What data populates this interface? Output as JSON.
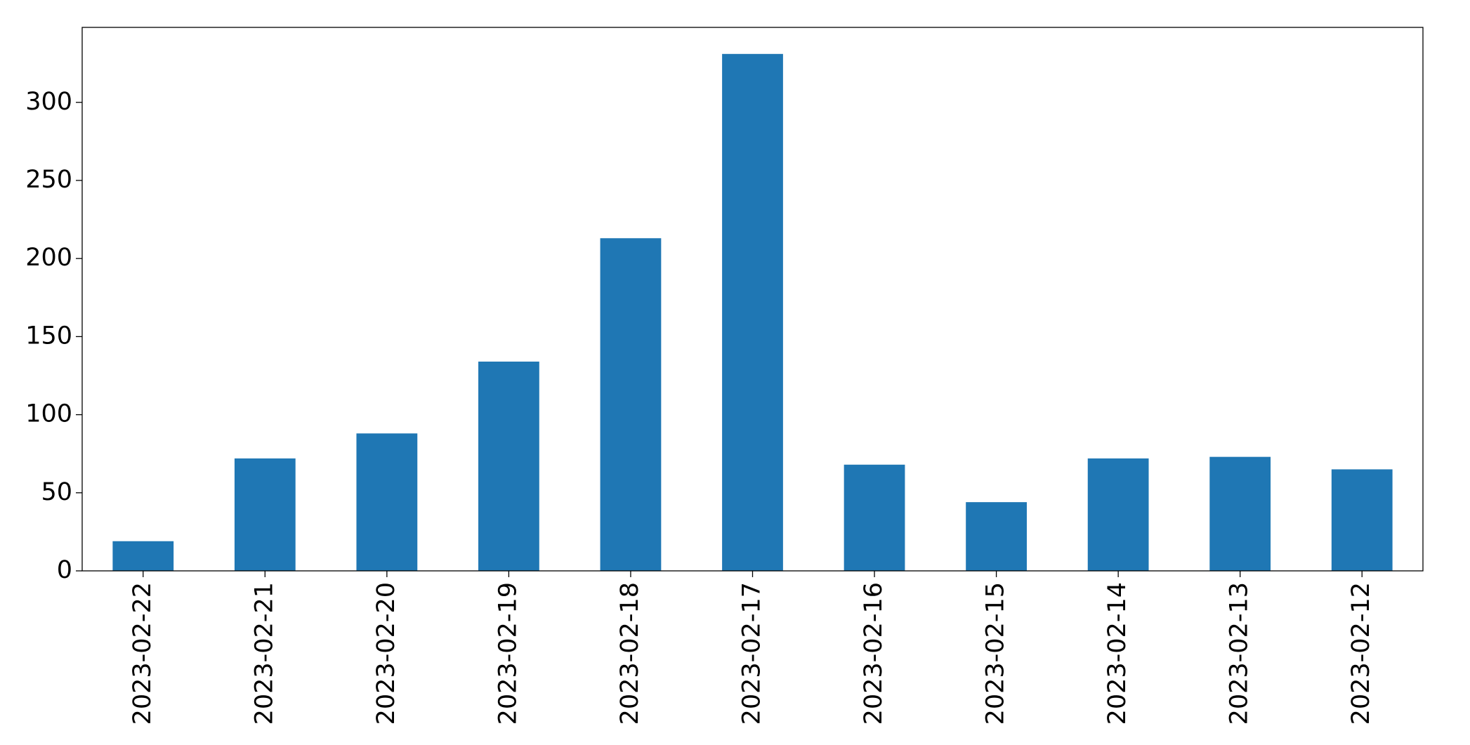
{
  "chart_data": {
    "type": "bar",
    "categories": [
      "2023-02-22",
      "2023-02-21",
      "2023-02-20",
      "2023-02-19",
      "2023-02-18",
      "2023-02-17",
      "2023-02-16",
      "2023-02-15",
      "2023-02-14",
      "2023-02-13",
      "2023-02-12"
    ],
    "values": [
      19,
      72,
      88,
      134,
      213,
      331,
      68,
      44,
      72,
      73,
      65
    ],
    "color": "#1f77b4",
    "ylim": [
      0,
      348
    ],
    "yticks": [
      0,
      50,
      100,
      150,
      200,
      250,
      300
    ],
    "grid": false
  }
}
